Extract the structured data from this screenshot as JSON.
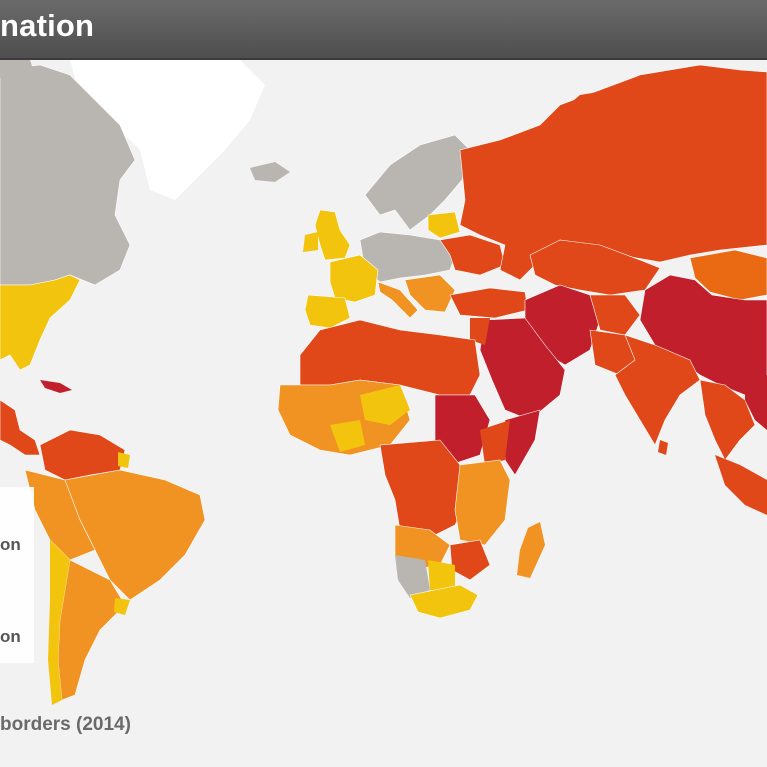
{
  "title": "nation",
  "legend": {
    "items": [
      {
        "label": "on",
        "color": "#e8500f"
      },
      {
        "label": "on",
        "color": "#f5d000"
      }
    ]
  },
  "footnote": "borders (2014)",
  "colors": {
    "very_high": "#c11f2c",
    "high": "#e0481a",
    "elevated": "#ea6a14",
    "moderate": "#f09322",
    "low": "#f3c40e",
    "very_low": "#ece81a",
    "no_data": "#b9b6b1",
    "ocean": "#f2f2f3",
    "ice": "#ffffff"
  }
}
